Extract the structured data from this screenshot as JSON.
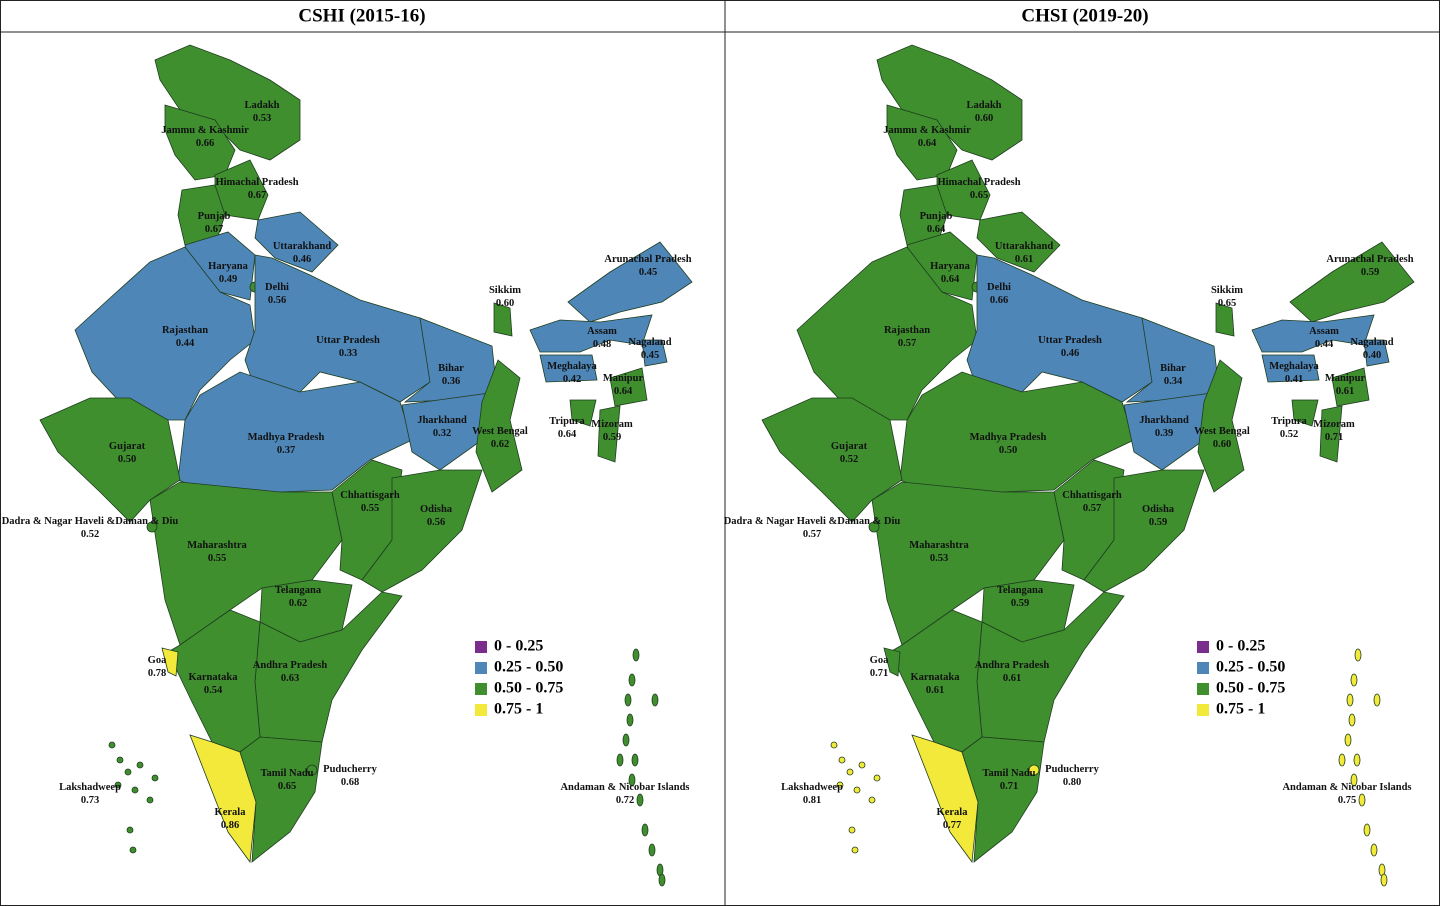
{
  "panels": [
    {
      "title": "CSHI (2015-16)",
      "regions": [
        {
          "name": "Ladakh",
          "value": "0.53"
        },
        {
          "name": "Jammu & Kashmir",
          "value": "0.66"
        },
        {
          "name": "Himachal Pradesh",
          "value": "0.67"
        },
        {
          "name": "Punjab",
          "value": "0.67"
        },
        {
          "name": "Uttarakhand",
          "value": "0.46"
        },
        {
          "name": "Haryana",
          "value": "0.49"
        },
        {
          "name": "Delhi",
          "value": "0.56"
        },
        {
          "name": "Rajasthan",
          "value": "0.44"
        },
        {
          "name": "Uttar Pradesh",
          "value": "0.33"
        },
        {
          "name": "Madhya Pradesh",
          "value": "0.37"
        },
        {
          "name": "Bihar",
          "value": "0.36"
        },
        {
          "name": "Jharkhand",
          "value": "0.32"
        },
        {
          "name": "West Bengal",
          "value": "0.62"
        },
        {
          "name": "Gujarat",
          "value": "0.50"
        },
        {
          "name": "Maharashtra",
          "value": "0.55"
        },
        {
          "name": "Chhattisgarh",
          "value": "0.55"
        },
        {
          "name": "Odisha",
          "value": "0.56"
        },
        {
          "name": "Telangana",
          "value": "0.62"
        },
        {
          "name": "Andhra Pradesh",
          "value": "0.63"
        },
        {
          "name": "Karnataka",
          "value": "0.54"
        },
        {
          "name": "Goa",
          "value": "0.78"
        },
        {
          "name": "Kerala",
          "value": "0.86"
        },
        {
          "name": "Tamil Nadu",
          "value": "0.65"
        },
        {
          "name": "Sikkim",
          "value": "0.60"
        },
        {
          "name": "Arunachal Pradesh",
          "value": "0.45"
        },
        {
          "name": "Assam",
          "value": "0.48"
        },
        {
          "name": "Meghalaya",
          "value": "0.42"
        },
        {
          "name": "Nagaland",
          "value": "0.45"
        },
        {
          "name": "Manipur",
          "value": "0.64"
        },
        {
          "name": "Mizoram",
          "value": "0.59"
        },
        {
          "name": "Tripura",
          "value": "0.64"
        },
        {
          "name": "Puducherry",
          "value": "0.68"
        },
        {
          "name": "Dadra & Nagar Haveli &Daman & Diu",
          "value": "0.52"
        },
        {
          "name": "Lakshadweep",
          "value": "0.73"
        },
        {
          "name": "Andaman & Nicobar Islands",
          "value": "0.72"
        }
      ],
      "legend": [
        {
          "label": "0 - 0.25",
          "color": "#7b2d8e"
        },
        {
          "label": "0.25 - 0.50",
          "color": "#4f86b8"
        },
        {
          "label": "0.50 - 0.75",
          "color": "#3f8f2f"
        },
        {
          "label": "0.75 - 1",
          "color": "#f3e93a"
        }
      ]
    },
    {
      "title": "CHSI (2019-20)",
      "regions": [
        {
          "name": "Ladakh",
          "value": "0.60"
        },
        {
          "name": "Jammu & Kashmir",
          "value": "0.64"
        },
        {
          "name": "Himachal Pradesh",
          "value": "0.65"
        },
        {
          "name": "Punjab",
          "value": "0.64"
        },
        {
          "name": "Uttarakhand",
          "value": "0.61"
        },
        {
          "name": "Haryana",
          "value": "0.64"
        },
        {
          "name": "Delhi",
          "value": "0.66"
        },
        {
          "name": "Rajasthan",
          "value": "0.57"
        },
        {
          "name": "Uttar Pradesh",
          "value": "0.46"
        },
        {
          "name": "Madhya Pradesh",
          "value": "0.50"
        },
        {
          "name": "Bihar",
          "value": "0.34"
        },
        {
          "name": "Jharkhand",
          "value": "0.39"
        },
        {
          "name": "West Bengal",
          "value": "0.60"
        },
        {
          "name": "Gujarat",
          "value": "0.52"
        },
        {
          "name": "Maharashtra",
          "value": "0.53"
        },
        {
          "name": "Chhattisgarh",
          "value": "0.57"
        },
        {
          "name": "Odisha",
          "value": "0.59"
        },
        {
          "name": "Telangana",
          "value": "0.59"
        },
        {
          "name": "Andhra Pradesh",
          "value": "0.61"
        },
        {
          "name": "Karnataka",
          "value": "0.61"
        },
        {
          "name": "Goa",
          "value": "0.71"
        },
        {
          "name": "Kerala",
          "value": "0.77"
        },
        {
          "name": "Tamil Nadu",
          "value": "0.71"
        },
        {
          "name": "Sikkim",
          "value": "0.65"
        },
        {
          "name": "Arunachal Pradesh",
          "value": "0.59"
        },
        {
          "name": "Assam",
          "value": "0.44"
        },
        {
          "name": "Meghalaya",
          "value": "0.41"
        },
        {
          "name": "Nagaland",
          "value": "0.40"
        },
        {
          "name": "Manipur",
          "value": "0.61"
        },
        {
          "name": "Mizoram",
          "value": "0.71"
        },
        {
          "name": "Tripura",
          "value": "0.52"
        },
        {
          "name": "Puducherry",
          "value": "0.80"
        },
        {
          "name": "Dadra & Nagar Haveli &Daman & Diu",
          "value": "0.57"
        },
        {
          "name": "Lakshadweep",
          "value": "0.81"
        },
        {
          "name": "Andaman & Nicobar Islands",
          "value": "0.75"
        }
      ],
      "legend": [
        {
          "label": "0 - 0.25",
          "color": "#7b2d8e"
        },
        {
          "label": "0.25 - 0.50",
          "color": "#4f86b8"
        },
        {
          "label": "0.50 - 0.75",
          "color": "#3f8f2f"
        },
        {
          "label": "0.75 - 1",
          "color": "#f3e93a"
        }
      ]
    }
  ]
}
